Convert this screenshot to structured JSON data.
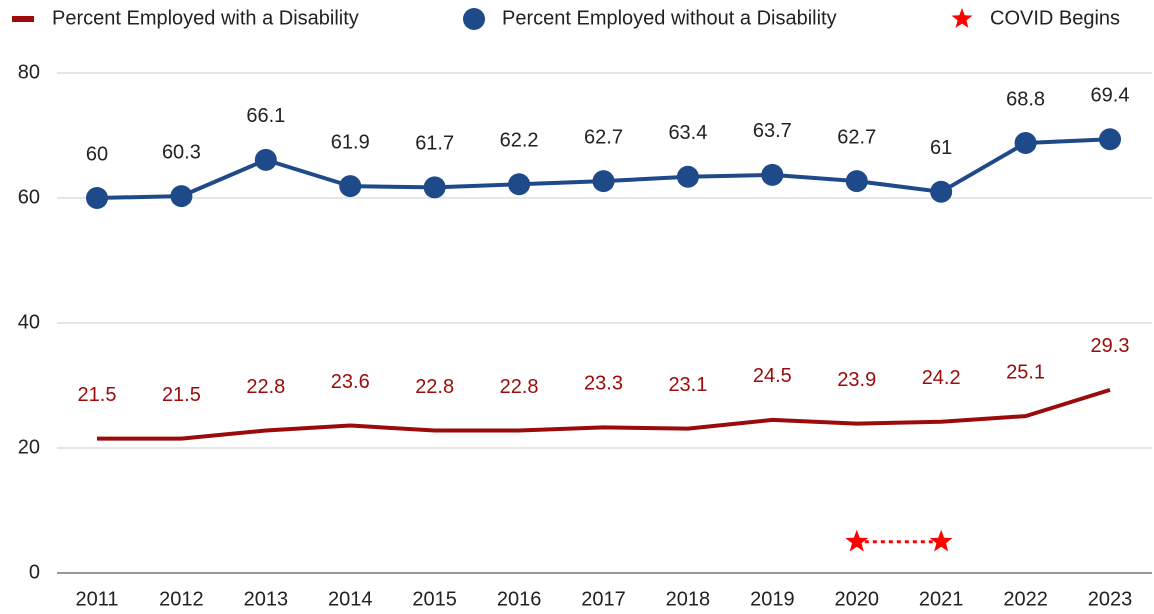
{
  "chart_data": {
    "type": "line",
    "categories": [
      "2011",
      "2012",
      "2013",
      "2014",
      "2015",
      "2016",
      "2017",
      "2018",
      "2019",
      "2020",
      "2021",
      "2022",
      "2023"
    ],
    "series": [
      {
        "name": "Percent Employed with a Disability",
        "color": "#9b0b0b",
        "marker": "none",
        "data_labels": true,
        "values": [
          21.5,
          21.5,
          22.8,
          23.6,
          22.8,
          22.8,
          23.3,
          23.1,
          24.5,
          23.9,
          24.2,
          25.1,
          29.3
        ]
      },
      {
        "name": "Percent Employed without a Disability",
        "color": "#1f4a8a",
        "marker": "circle",
        "data_labels": true,
        "values": [
          60,
          60.3,
          66.1,
          61.9,
          61.7,
          62.2,
          62.7,
          63.4,
          63.7,
          62.7,
          61,
          68.8,
          69.4
        ]
      },
      {
        "name": "COVID Begins",
        "color": "#ff0000",
        "marker": "star",
        "dashed": true,
        "data_labels": false,
        "values": [
          null,
          null,
          null,
          null,
          null,
          null,
          null,
          null,
          null,
          5,
          5,
          null,
          null
        ]
      }
    ],
    "ylim": [
      0,
      80
    ],
    "yticks": [
      0,
      20,
      40,
      60,
      80
    ],
    "grid": true,
    "legend": "top"
  }
}
